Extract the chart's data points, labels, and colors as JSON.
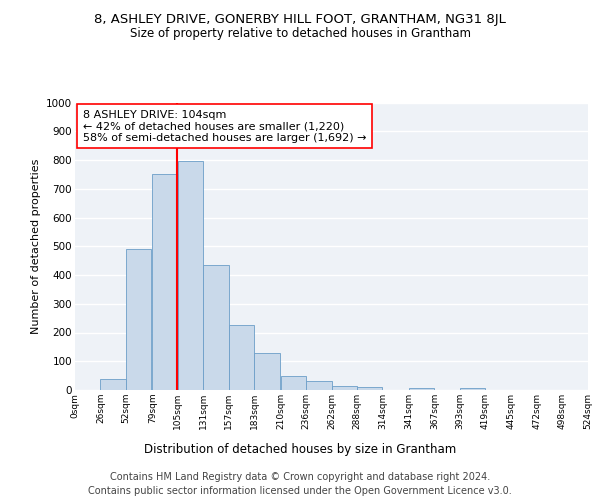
{
  "title": "8, ASHLEY DRIVE, GONERBY HILL FOOT, GRANTHAM, NG31 8JL",
  "subtitle": "Size of property relative to detached houses in Grantham",
  "xlabel": "Distribution of detached houses by size in Grantham",
  "ylabel": "Number of detached properties",
  "bin_edges": [
    0,
    26,
    52,
    79,
    105,
    131,
    157,
    183,
    210,
    236,
    262,
    288,
    314,
    341,
    367,
    393,
    419,
    445,
    472,
    498,
    524
  ],
  "bar_heights": [
    0,
    40,
    490,
    750,
    795,
    435,
    225,
    130,
    50,
    30,
    15,
    10,
    0,
    8,
    0,
    8,
    0,
    0,
    0,
    0
  ],
  "bar_face_color": "#c9d9ea",
  "bar_edge_color": "#6b9ec8",
  "property_size": 104,
  "annotation_line1": "8 ASHLEY DRIVE: 104sqm",
  "annotation_line2": "← 42% of detached houses are smaller (1,220)",
  "annotation_line3": "58% of semi-detached houses are larger (1,692) →",
  "annotation_box_edge_color": "red",
  "vline_color": "red",
  "vline_x": 104,
  "ylim": [
    0,
    1000
  ],
  "yticks": [
    0,
    100,
    200,
    300,
    400,
    500,
    600,
    700,
    800,
    900,
    1000
  ],
  "tick_labels": [
    "0sqm",
    "26sqm",
    "52sqm",
    "79sqm",
    "105sqm",
    "131sqm",
    "157sqm",
    "183sqm",
    "210sqm",
    "236sqm",
    "262sqm",
    "288sqm",
    "314sqm",
    "341sqm",
    "367sqm",
    "393sqm",
    "419sqm",
    "445sqm",
    "472sqm",
    "498sqm",
    "524sqm"
  ],
  "footer_line1": "Contains HM Land Registry data © Crown copyright and database right 2024.",
  "footer_line2": "Contains public sector information licensed under the Open Government Licence v3.0.",
  "plot_bg_color": "#eef2f7",
  "grid_color": "#ffffff",
  "title_fontsize": 9.5,
  "subtitle_fontsize": 8.5,
  "xlabel_fontsize": 8.5,
  "ylabel_fontsize": 8,
  "footer_fontsize": 7,
  "annotation_fontsize": 8
}
